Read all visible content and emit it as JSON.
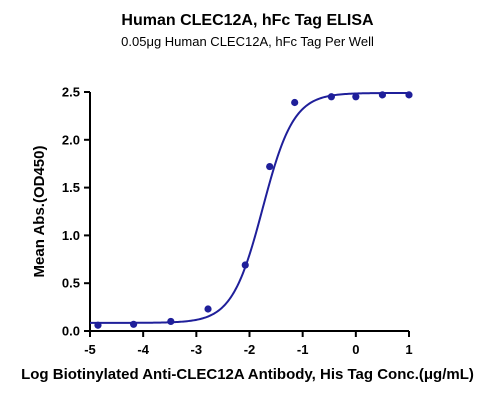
{
  "chart_data": {
    "type": "scatter",
    "title": "Human CLEC12A, hFc Tag ELISA",
    "subtitle": "0.05μg Human CLEC12A, hFc Tag Per Well",
    "xlabel": "Log Biotinylated Anti-CLEC12A Antibody, His Tag Conc.(μg/mL)",
    "ylabel": "Mean Abs.(OD450)",
    "xlim": [
      -5,
      1
    ],
    "ylim": [
      0,
      2.5
    ],
    "x_ticks": [
      -5,
      -4,
      -3,
      -2,
      -1,
      0,
      1
    ],
    "y_ticks": [
      0.0,
      0.5,
      1.0,
      1.5,
      2.0,
      2.5
    ],
    "x_tick_labels": [
      "-5",
      "-4",
      "-3",
      "-2",
      "-1",
      "0",
      "1"
    ],
    "y_tick_labels": [
      "0.0",
      "0.5",
      "1.0",
      "1.5",
      "2.0",
      "2.5"
    ],
    "grid": false,
    "legend": "none",
    "series": [
      {
        "x": [
          -4.85,
          -4.18,
          -3.48,
          -2.78,
          -2.08,
          -1.62,
          -1.15,
          -0.46,
          0.0,
          0.5,
          1.0
        ],
        "y": [
          0.06,
          0.07,
          0.1,
          0.23,
          0.69,
          1.72,
          2.39,
          2.45,
          2.45,
          2.47,
          2.47
        ]
      }
    ],
    "fit_curve": {
      "model": "4PL",
      "bottom": 0.085,
      "top": 2.49,
      "log_ec50": -1.75,
      "hill_slope": 1.5
    },
    "colors": {
      "series": "#1f1f9a",
      "axis": "#000000"
    }
  }
}
